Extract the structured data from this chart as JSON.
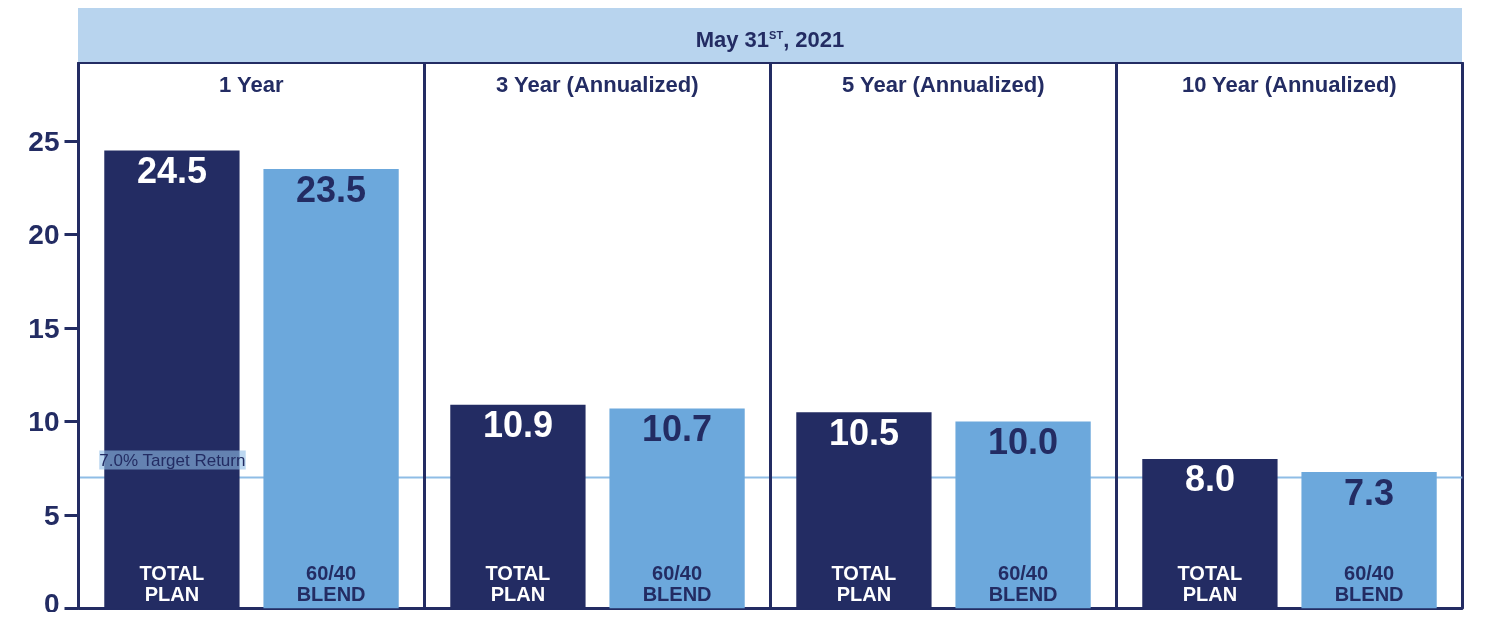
{
  "chart_data": {
    "type": "bar",
    "title": "May 31$^{ST}$, 2021",
    "categories": [
      "1 Year",
      "3 Year (Annualized)",
      "5 Year (Annualized)",
      "10 Year (Annualized)"
    ],
    "series": [
      {
        "name": "TOTAL PLAN",
        "color": "#232c63",
        "values": [
          24.5,
          10.9,
          10.5,
          8.0
        ],
        "value_labels": [
          "24.5",
          "10.9",
          "10.5",
          "8.0"
        ]
      },
      {
        "name": "60/40 BLEND",
        "color": "#6ca8dc",
        "values": [
          23.5,
          10.7,
          10.0,
          7.3
        ],
        "value_labels": [
          "23.5",
          "10.7",
          "10.0",
          "7.3"
        ]
      }
    ],
    "ylim": [
      0,
      29.2
    ],
    "yticks": [
      0,
      5,
      10,
      15,
      20,
      25
    ],
    "ref_lines": [
      {
        "axis": "y",
        "value": 7.0,
        "label": "7.0% Target Return",
        "color": "#8fbde6"
      }
    ],
    "grid": false,
    "tick_labels": "y"
  }
}
